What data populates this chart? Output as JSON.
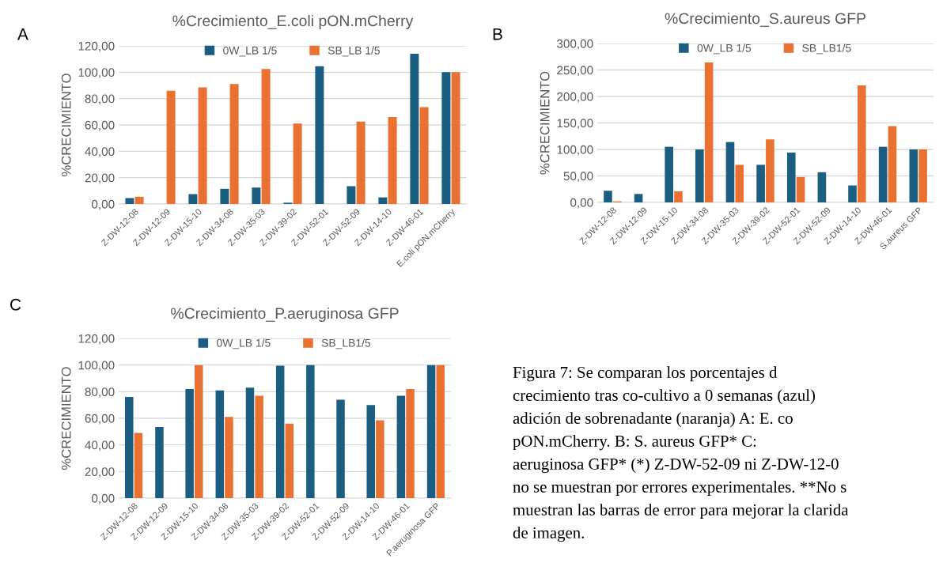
{
  "chart_data": [
    {
      "type": "bar",
      "title": "%Crecimiento_E.coli pON.mCherry",
      "ylabel": "%CRECIMIENTO",
      "annotations": [
        "A"
      ],
      "legend": "top",
      "grid": "y",
      "categories": [
        "Z-DW-12-08",
        "Z-DW-12-09",
        "Z-DW-15-10",
        "Z-DW-34-08",
        "Z-DW-35-03",
        "Z-DW-39-02",
        "Z-DW-52-01",
        "Z-DW-52-09",
        "Z-DW-14-10",
        "Z-DW-46-01",
        "E.coli pON.mCherry"
      ],
      "series": [
        {
          "name": "0W_LB 1/5",
          "color": "#1b5e82",
          "values": [
            4.5,
            null,
            7.5,
            11.5,
            12.5,
            1,
            104.5,
            13.5,
            5,
            114,
            100
          ]
        },
        {
          "name": "SB_LB 1/5",
          "color": "#e97132",
          "values": [
            5.5,
            86,
            88.5,
            91,
            102.5,
            61,
            null,
            62.5,
            66,
            73.5,
            100
          ]
        }
      ],
      "ylim": [
        0,
        120
      ],
      "yticks": [
        {
          "value": 0,
          "label": "0,00"
        },
        {
          "value": 20,
          "label": "20,00"
        },
        {
          "value": 40,
          "label": "40,00"
        },
        {
          "value": 60,
          "label": "60,00"
        },
        {
          "value": 80,
          "label": "80,00"
        },
        {
          "value": 100,
          "label": "100,00"
        },
        {
          "value": 120,
          "label": "120,00"
        }
      ]
    },
    {
      "type": "bar",
      "title": "%Crecimiento_S.aureus GFP",
      "ylabel": "%CRECIMIENTO",
      "annotations": [
        "B"
      ],
      "legend": "top",
      "grid": "y",
      "categories": [
        "Z-DW-12-08",
        "Z-DW-12-09",
        "Z-DW-15-10",
        "Z-DW-34-08",
        "Z-DW-35-03",
        "Z-DW-39-02",
        "Z-DW-52-01",
        "Z-DW-52-09",
        "Z-DW-14-10",
        "Z-DW-46-01",
        "S.aureus GFP"
      ],
      "series": [
        {
          "name": "0W_LB 1/5",
          "color": "#1b5e82",
          "values": [
            22,
            16,
            105,
            100,
            114,
            71,
            94,
            57,
            32,
            105,
            100
          ]
        },
        {
          "name": "SB_LB1/5",
          "color": "#e97132",
          "values": [
            2,
            null,
            21,
            264,
            71,
            119,
            48,
            null,
            221,
            144,
            100
          ]
        }
      ],
      "ylim": [
        0,
        300
      ],
      "yticks": [
        {
          "value": 0,
          "label": "0,00"
        },
        {
          "value": 50,
          "label": "50,00"
        },
        {
          "value": 100,
          "label": "100,00"
        },
        {
          "value": 150,
          "label": "150,00"
        },
        {
          "value": 200,
          "label": "200,00"
        },
        {
          "value": 250,
          "label": "250,00"
        },
        {
          "value": 300,
          "label": "300,00"
        }
      ]
    },
    {
      "type": "bar",
      "title": "%Crecimiento_P.aeruginosa GFP",
      "ylabel": "%CRECIMIENTO",
      "annotations": [
        "C"
      ],
      "legend": "top",
      "grid": "y",
      "categories": [
        "Z-DW-12-08",
        "Z-DW-12-09",
        "Z-DW-15-10",
        "Z-DW-34-08",
        "Z-DW-35-03",
        "Z-DW-39-02",
        "Z-DW-52-01",
        "Z-DW-52-09",
        "Z-DW-14-10",
        "Z-DW-46-01",
        "P.aeruginosa GFP"
      ],
      "series": [
        {
          "name": "0W_LB 1/5",
          "color": "#1b5e82",
          "values": [
            76,
            53.5,
            82,
            81,
            83,
            99.5,
            100,
            74,
            70,
            77,
            100
          ]
        },
        {
          "name": "SB_LB1/5",
          "color": "#e97132",
          "values": [
            49,
            null,
            100,
            61,
            77,
            56,
            null,
            null,
            58.5,
            82,
            100
          ]
        }
      ],
      "ylim": [
        0,
        120
      ],
      "yticks": [
        {
          "value": 0,
          "label": "0,00"
        },
        {
          "value": 20,
          "label": "20,00"
        },
        {
          "value": 40,
          "label": "40,00"
        },
        {
          "value": 60,
          "label": "60,00"
        },
        {
          "value": 80,
          "label": "80,00"
        },
        {
          "value": 100,
          "label": "100,00"
        },
        {
          "value": 120,
          "label": "120,00"
        }
      ]
    },
    {
      "type": "other",
      "annotations": [
        "Figura 7: Se comparan los porcentajes d",
        "crecimiento tras co-cultivo a 0 semanas (azul)",
        "adición de sobrenadante (naranja) A: E. co",
        "pON.mCherry. B: S. aureus GFP* C:",
        "aeruginosa GFP* (*) Z-DW-52-09 ni Z-DW-12-0",
        "no se muestran por errores experimentales. **No s",
        "muestran las barras de error para mejorar la clarida",
        "de imagen."
      ]
    }
  ]
}
